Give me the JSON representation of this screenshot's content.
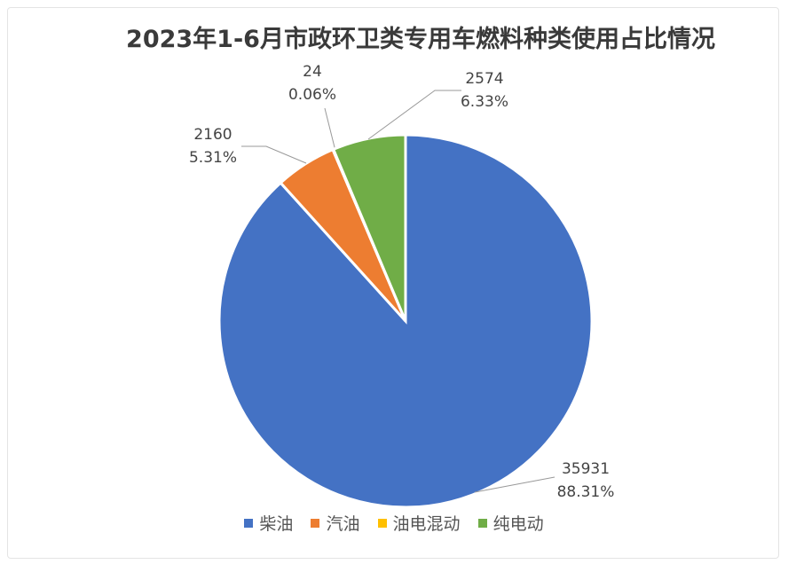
{
  "chart_data": {
    "type": "pie",
    "title": "2023年1-6月市政环卫类专用车燃料种类使用占比情况",
    "start_angle": "12 o'clock, clockwise",
    "legend_position": "bottom",
    "slices": [
      {
        "name": "柴油",
        "value": 35931,
        "percent_label": "88.31%",
        "color": "#4472C4"
      },
      {
        "name": "汽油",
        "value": 2160,
        "percent_label": "5.31%",
        "color": "#ED7D31"
      },
      {
        "name": "油电混动",
        "value": 24,
        "percent_label": "0.06%",
        "color": "#FFC000"
      },
      {
        "name": "纯电动",
        "value": 2574,
        "percent_label": "6.33%",
        "color": "#70AD47"
      }
    ]
  }
}
